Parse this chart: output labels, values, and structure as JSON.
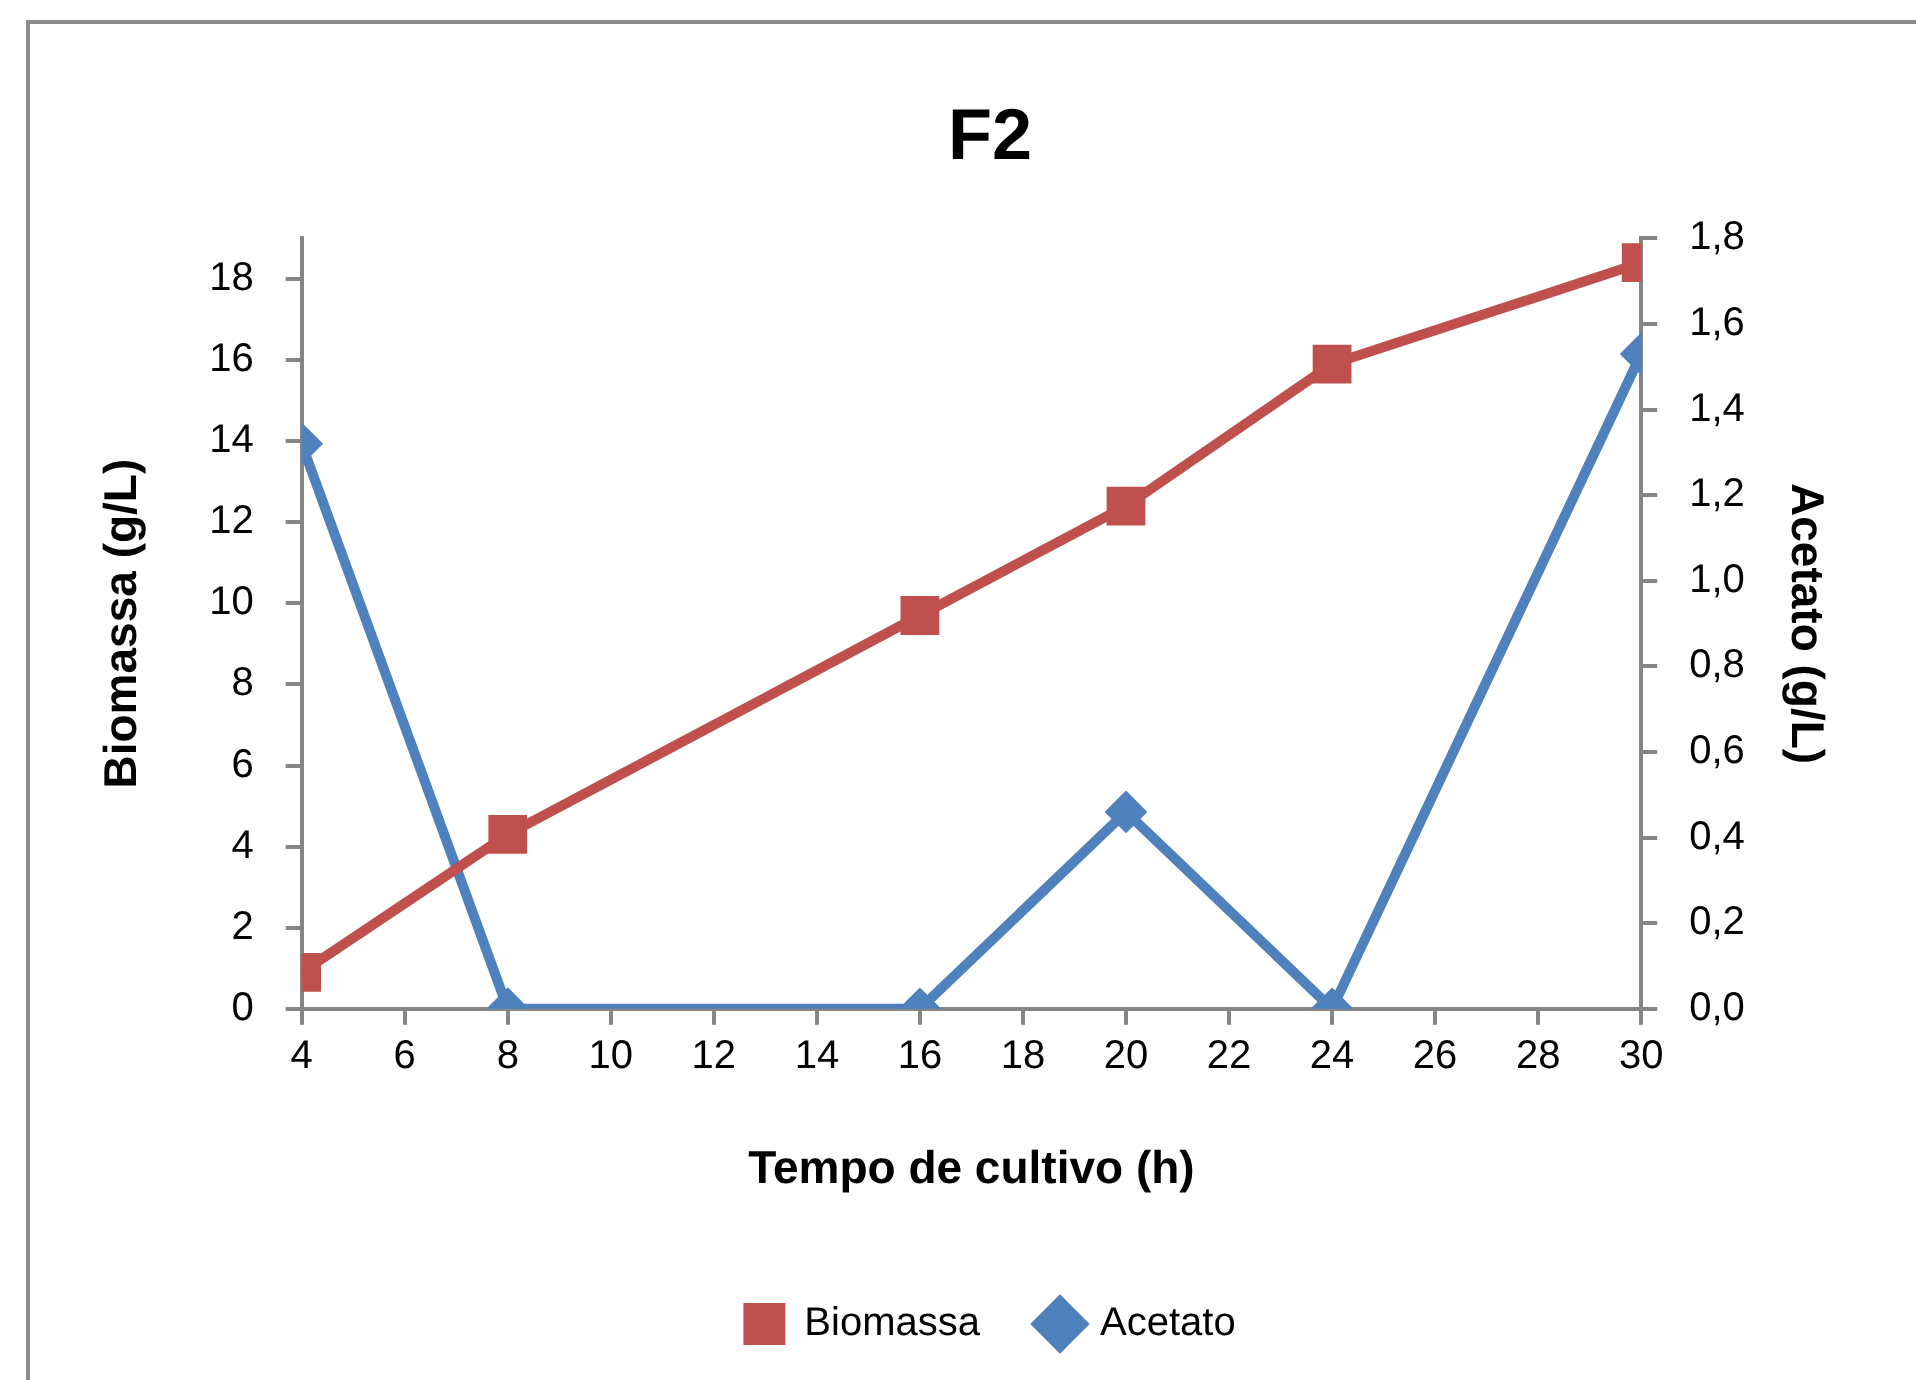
{
  "chart_data": {
    "type": "line",
    "title": "F2",
    "xlabel": "Tempo de cultivo (h)",
    "ylabel": "Biomassa (g/L)",
    "y2label": "Acetato (g/L)",
    "x": [
      4,
      8,
      16,
      20,
      24,
      30
    ],
    "series": [
      {
        "name": "Biomassa",
        "color": "#c0504d",
        "values": [
          0.9,
          4.3,
          9.7,
          12.4,
          15.9,
          18.4
        ],
        "marker": "square"
      },
      {
        "name": "Acetato",
        "color": "#4f81bd",
        "values": [
          1.32,
          0,
          0,
          0.46,
          0,
          1.53
        ],
        "axis": "y2",
        "marker": "diamond"
      }
    ],
    "xlim": [
      4,
      30
    ],
    "xticks": [
      4,
      6,
      8,
      10,
      12,
      14,
      16,
      18,
      20,
      22,
      24,
      26,
      28,
      30
    ],
    "ylim": [
      0,
      19
    ],
    "yticks": [
      0,
      2,
      4,
      6,
      8,
      10,
      12,
      14,
      16,
      18
    ],
    "y2lim": [
      0,
      1.8
    ],
    "y2ticks": [
      {
        "value": 0,
        "label": "0,0"
      },
      {
        "value": 0.2,
        "label": "0,2"
      },
      {
        "value": 0.4,
        "label": "0,4"
      },
      {
        "value": 0.6,
        "label": "0,6"
      },
      {
        "value": 0.8,
        "label": "0,8"
      },
      {
        "value": 1,
        "label": "1,0"
      },
      {
        "value": 1.2,
        "label": "1,2"
      },
      {
        "value": 1.4,
        "label": "1,4"
      },
      {
        "value": 1.6,
        "label": "1,6"
      },
      {
        "value": 1.8,
        "label": "1,8"
      }
    ],
    "grid": false,
    "legend": "bottom",
    "line_style": "solid"
  }
}
